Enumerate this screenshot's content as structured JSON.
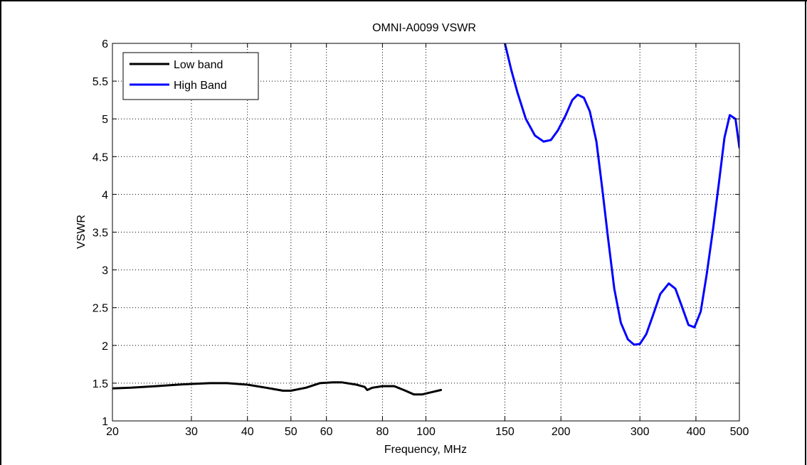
{
  "chart_data": {
    "type": "line",
    "title": "OMNI-A0099 VSWR",
    "xlabel": "Frequency, MHz",
    "ylabel": "VSWR",
    "xscale": "log",
    "xlim": [
      20,
      500
    ],
    "ylim": [
      1,
      6
    ],
    "grid": true,
    "legend_position": "top-left",
    "x_ticks": [
      20,
      30,
      40,
      50,
      60,
      80,
      100,
      150,
      200,
      300,
      400,
      500
    ],
    "x_tick_labels": [
      "20",
      "30",
      "40",
      "50",
      "60",
      "80",
      "100",
      "150",
      "200",
      "300",
      "400",
      "500"
    ],
    "y_ticks": [
      1,
      1.5,
      2,
      2.5,
      3,
      3.5,
      4,
      4.5,
      5,
      5.5,
      6
    ],
    "y_tick_labels": [
      "1",
      "1.5",
      "2",
      "2.5",
      "3",
      "3.5",
      "4",
      "4.5",
      "5",
      "5.5",
      "6"
    ],
    "series": [
      {
        "name": "Low band",
        "color": "#000000",
        "x": [
          20,
          22,
          25,
          28,
          30,
          33,
          36,
          40,
          44,
          48,
          50,
          54,
          58,
          62,
          65,
          70,
          73,
          74,
          76,
          80,
          85,
          90,
          94,
          98,
          103,
          108
        ],
        "y": [
          1.43,
          1.44,
          1.46,
          1.48,
          1.49,
          1.5,
          1.5,
          1.48,
          1.44,
          1.4,
          1.4,
          1.44,
          1.5,
          1.51,
          1.51,
          1.48,
          1.45,
          1.41,
          1.44,
          1.46,
          1.46,
          1.4,
          1.35,
          1.35,
          1.38,
          1.41
        ]
      },
      {
        "name": "High Band",
        "color": "#0000ff",
        "x": [
          150,
          155,
          160,
          167,
          175,
          183,
          190,
          197,
          205,
          212,
          218,
          225,
          232,
          240,
          247,
          255,
          263,
          272,
          282,
          291,
          300,
          310,
          320,
          333,
          348,
          360,
          373,
          385,
          397,
          410,
          423,
          437,
          450,
          463,
          476,
          490,
          500
        ],
        "y": [
          6.0,
          5.65,
          5.35,
          5.0,
          4.78,
          4.7,
          4.72,
          4.85,
          5.05,
          5.25,
          5.32,
          5.28,
          5.1,
          4.7,
          4.1,
          3.4,
          2.75,
          2.3,
          2.08,
          2.01,
          2.02,
          2.15,
          2.38,
          2.68,
          2.82,
          2.75,
          2.5,
          2.27,
          2.24,
          2.45,
          2.95,
          3.55,
          4.15,
          4.75,
          5.05,
          5.0,
          4.62
        ]
      }
    ]
  }
}
